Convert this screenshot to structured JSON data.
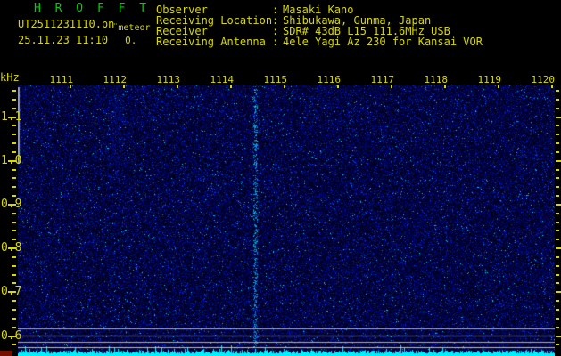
{
  "header": {
    "app_title": "H R O F F T",
    "file_name": "UT2511231110.pn",
    "station_label": "¨meteor",
    "datetime": "25.11.23 11:10",
    "counter": "0.",
    "separator": ":",
    "info": [
      {
        "label": "Observer",
        "value": "Masaki Kano"
      },
      {
        "label": "Receiving Location",
        "value": "Shibukawa, Gunma, Japan"
      },
      {
        "label": "Receiver",
        "value": "SDR# 43dB L15 111.6MHz USB"
      },
      {
        "label": "Receiving Antenna",
        "value": "4ele Yagi Az 230 for Kansai VOR"
      }
    ]
  },
  "chart": {
    "unit_label": "kHz",
    "x_tick_labels": [
      "1111",
      "1112",
      "1113",
      "1114",
      "1115",
      "1116",
      "1117",
      "1118",
      "1119",
      "1120"
    ],
    "y_tick_labels": [
      "1.1",
      "1.0",
      "0.9",
      "0.8",
      "0.7",
      "0.6"
    ]
  },
  "chart_data": {
    "type": "heatmap",
    "title": "HROFFT 10-minute radio meteor observation spectrogram",
    "ylabel": "kHz",
    "y_ticks": [
      1.1,
      1.0,
      0.9,
      0.8,
      0.7,
      0.6
    ],
    "y_range_khz": [
      0.58,
      1.17
    ],
    "x_ticks_time": [
      "1111",
      "1112",
      "1113",
      "1114",
      "1115",
      "1116",
      "1117",
      "1118",
      "1119",
      "1120"
    ],
    "x_range_time": [
      "11:11",
      "11:20"
    ],
    "grid": false,
    "legend": "none",
    "features": [
      "dense dark-blue background noise speckle over whole plot",
      "faint continuous cyan carrier streak near time 11:14.5 spanning all frequencies",
      "short light-gray vertical line segment at left plot edge from ~1.17 to ~0.99 kHz",
      "four horizontal light-gray reference lines near 0.60-0.64 kHz",
      "solid cyan noise-floor amplitude strip along the bottom edge",
      "dark-red level indicator patch at bottom-left corner"
    ]
  },
  "colors": {
    "accent_yellow": "#d8d800",
    "title_green": "#00d000",
    "waveform_cyan": "#00eeff",
    "noise_base_blue": "#000030",
    "reference_line_gray": "#b4b4c4",
    "level_patch_red": "#751000"
  }
}
